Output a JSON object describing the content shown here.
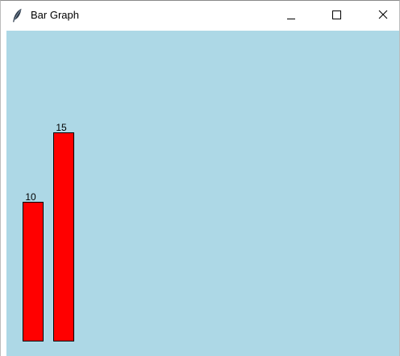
{
  "window": {
    "title": "Bar Graph",
    "icon": "feather-icon",
    "controls": [
      "minimize-icon",
      "maximize-icon",
      "close-icon"
    ]
  },
  "colors": {
    "canvas_background": "#add8e6",
    "bar_fill": "#ff0000",
    "bar_outline": "#000000"
  },
  "chart_data": {
    "type": "bar",
    "values": [
      10,
      15
    ],
    "labels": [
      "10",
      "15"
    ],
    "title": "",
    "xlabel": "",
    "ylabel": "",
    "grid": false,
    "legend": "none"
  }
}
